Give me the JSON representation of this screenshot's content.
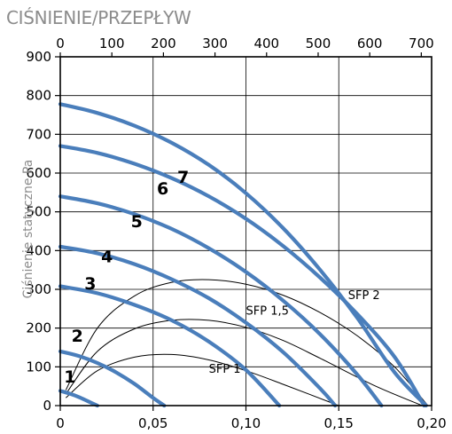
{
  "chart_data": {
    "type": "line",
    "title": "CIŚNIENIE/PRZEPŁYW",
    "ylabel": "Ciśnienie statyczne Pa",
    "x_bottom_ticks": [
      "0",
      "0,05",
      "0,10",
      "0,15",
      "0,20"
    ],
    "x_top_ticks": [
      "0",
      "100",
      "200",
      "300",
      "400",
      "500",
      "600",
      "700"
    ],
    "y_ticks": [
      "0",
      "100",
      "200",
      "300",
      "400",
      "500",
      "600",
      "700",
      "800",
      "900"
    ],
    "xlim_bottom": [
      0,
      0.2
    ],
    "xlim_top": [
      0,
      720
    ],
    "ylim": [
      0,
      900
    ],
    "grid": true,
    "series": [
      {
        "name": "1",
        "x": [
          0,
          0.005,
          0.01,
          0.015,
          0.02
        ],
        "y": [
          38,
          31,
          22,
          11,
          0
        ],
        "label_at": [
          0.002,
          60
        ]
      },
      {
        "name": "2",
        "x": [
          0,
          0.01,
          0.02,
          0.03,
          0.04,
          0.05,
          0.056
        ],
        "y": [
          140,
          128,
          110,
          86,
          56,
          20,
          0
        ],
        "label_at": [
          0.006,
          165
        ]
      },
      {
        "name": "3",
        "x": [
          0,
          0.02,
          0.04,
          0.06,
          0.08,
          0.1,
          0.118
        ],
        "y": [
          308,
          290,
          260,
          220,
          165,
          92,
          0
        ],
        "label_at": [
          0.013,
          300
        ]
      },
      {
        "name": "4",
        "x": [
          0,
          0.02,
          0.04,
          0.06,
          0.08,
          0.1,
          0.12,
          0.14,
          0.148
        ],
        "y": [
          410,
          393,
          365,
          326,
          277,
          214,
          138,
          44,
          0
        ],
        "label_at": [
          0.022,
          370
        ]
      },
      {
        "name": "5",
        "x": [
          0,
          0.02,
          0.04,
          0.06,
          0.08,
          0.1,
          0.12,
          0.14,
          0.16,
          0.173
        ],
        "y": [
          540,
          522,
          494,
          456,
          406,
          345,
          271,
          184,
          80,
          0
        ],
        "label_at": [
          0.038,
          460
        ]
      },
      {
        "name": "6",
        "x": [
          0,
          0.02,
          0.04,
          0.06,
          0.08,
          0.1,
          0.12,
          0.14,
          0.16,
          0.18,
          0.196
        ],
        "y": [
          670,
          652,
          624,
          587,
          540,
          482,
          412,
          330,
          236,
          126,
          0
        ],
        "label_at": [
          0.052,
          545
        ]
      },
      {
        "name": "7",
        "x": [
          0,
          0.02,
          0.04,
          0.06,
          0.08,
          0.1,
          0.12,
          0.14,
          0.16,
          0.18,
          0.197
        ],
        "y": [
          778,
          755,
          722,
          678,
          621,
          548,
          458,
          350,
          226,
          86,
          0
        ],
        "label_at": [
          0.063,
          575
        ]
      }
    ],
    "sfp_curves": [
      {
        "name": "SFP 1",
        "x": [
          0.003,
          0.02,
          0.04,
          0.06,
          0.08,
          0.1,
          0.12,
          0.15
        ],
        "y": [
          20,
          90,
          125,
          132,
          118,
          90,
          55,
          0
        ],
        "label_at": [
          0.08,
          85
        ]
      },
      {
        "name": "SFP 1,5",
        "x": [
          0.003,
          0.02,
          0.04,
          0.06,
          0.08,
          0.1,
          0.12,
          0.14,
          0.17,
          0.195
        ],
        "y": [
          30,
          140,
          198,
          220,
          220,
          202,
          168,
          122,
          50,
          0
        ],
        "label_at": [
          0.1,
          235
        ]
      },
      {
        "name": "SFP 2",
        "x": [
          0.003,
          0.02,
          0.04,
          0.06,
          0.08,
          0.1,
          0.12,
          0.14,
          0.16,
          0.18,
          0.198
        ],
        "y": [
          40,
          200,
          283,
          318,
          325,
          313,
          285,
          240,
          180,
          100,
          0
        ],
        "label_at": [
          0.155,
          275
        ]
      }
    ],
    "colors": {
      "curve": "#4a7ebb",
      "sfp": "#000000",
      "grid": "#000000"
    }
  }
}
